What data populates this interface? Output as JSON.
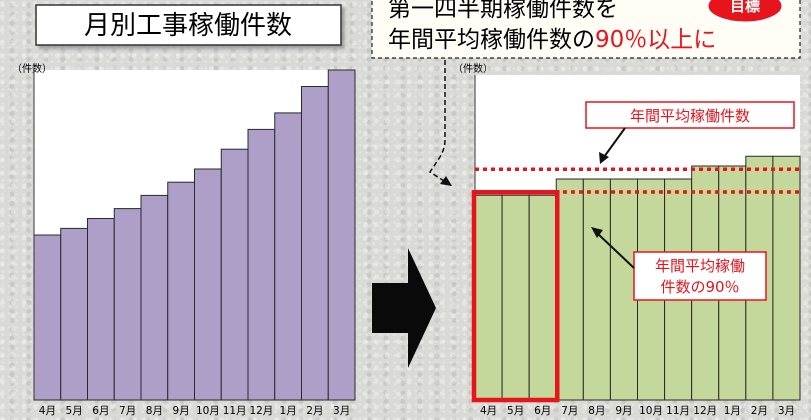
{
  "chart_data": [
    {
      "type": "bar",
      "title": "月別工事稼働件数",
      "ylabel": "（件数）",
      "categories": [
        "4月",
        "5月",
        "6月",
        "7月",
        "8月",
        "9月",
        "10月",
        "11月",
        "12月",
        "1月",
        "2月",
        "3月"
      ],
      "values": [
        50,
        52,
        55,
        58,
        62,
        66,
        70,
        76,
        82,
        87,
        95,
        100
      ],
      "ylim": [
        0,
        100
      ],
      "colors": {
        "bar": "#ae9fc9",
        "edge": "#2a2a2a"
      }
    },
    {
      "type": "bar",
      "ylabel": "（件数）",
      "categories": [
        "4月",
        "5月",
        "6月",
        "7月",
        "8月",
        "9月",
        "10月",
        "11月",
        "12月",
        "1月",
        "2月",
        "3月"
      ],
      "values": [
        63,
        63,
        63,
        68,
        68,
        68,
        68,
        68,
        72,
        72,
        75,
        75
      ],
      "ylim": [
        0,
        100
      ],
      "average_line": 71,
      "ninety_percent_line": 64,
      "highlight_months": [
        "4月",
        "5月",
        "6月"
      ],
      "annotations": [
        "年間平均稼働件数",
        "年間平均稼働",
        "件数の90％"
      ],
      "colors": {
        "bar": "#c4d89b",
        "edge": "#2a2a2a",
        "line": "#e8141b",
        "highlight": "#e8141b"
      }
    }
  ],
  "callout": {
    "line1": "第一四半期稼働件数を",
    "line2_prefix": "年間平均稼働件数の",
    "line2_emph": "90％以上に",
    "badge": "目標"
  }
}
